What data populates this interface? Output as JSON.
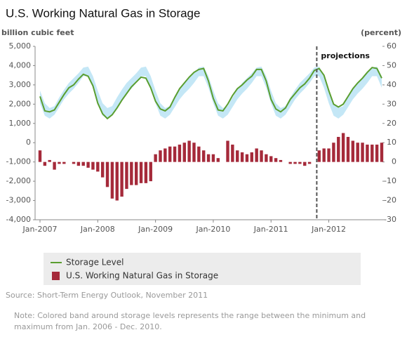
{
  "chart_data": {
    "type": "combo",
    "title": "U.S. Working Natural Gas in Storage",
    "y_label": "billion cubic feet",
    "y2_label": "(percent)",
    "annotation": "projections",
    "source": "Source: Short-Term Energy Outlook, November 2011",
    "note": [
      "Note: Colored band around storage levels represents the range between the minimum and",
      "maximum from Jan. 2006 - Dec. 2010."
    ],
    "categories": [
      "Jan-2007",
      null,
      null,
      null,
      null,
      null,
      null,
      null,
      null,
      null,
      null,
      null,
      "Jan-2008",
      null,
      null,
      null,
      null,
      null,
      null,
      null,
      null,
      null,
      null,
      null,
      "Jan-2009",
      null,
      null,
      null,
      null,
      null,
      null,
      null,
      null,
      null,
      null,
      null,
      "Jan-2010",
      null,
      null,
      null,
      null,
      null,
      null,
      null,
      null,
      null,
      null,
      null,
      "Jan-2011",
      null,
      null,
      null,
      null,
      null,
      null,
      null,
      null,
      null,
      null,
      null,
      "Jan-2012",
      null,
      null,
      null,
      null,
      null,
      null,
      null,
      null,
      null,
      null,
      null
    ],
    "ylim": [
      -4000,
      5000
    ],
    "yticks": [
      {
        "value": -4000,
        "label": "-4,000"
      },
      {
        "value": -3000,
        "label": "-3,000"
      },
      {
        "value": -2000,
        "label": "-2,000"
      },
      {
        "value": -1000,
        "label": "-1,000"
      },
      0,
      {
        "value": 1000,
        "label": "1,000"
      },
      {
        "value": 2000,
        "label": "2,000"
      },
      {
        "value": 3000,
        "label": "3,000"
      },
      {
        "value": 4000,
        "label": "4,000"
      },
      {
        "value": 5000,
        "label": "5,000"
      }
    ],
    "y2lim": [
      -30,
      60
    ],
    "y2ticks": [
      -30,
      -20,
      -10,
      0,
      10,
      20,
      30,
      40,
      50,
      60
    ],
    "band": {
      "color": "#c4e7f6",
      "low": [
        2050,
        1400,
        1250,
        1450,
        1850,
        2250,
        2550,
        2800,
        3100,
        3450,
        3450,
        2850,
        2050,
        1400,
        1250,
        1450,
        1850,
        2250,
        2550,
        2800,
        3100,
        3450,
        3450,
        2850,
        2050,
        1400,
        1250,
        1450,
        1850,
        2250,
        2550,
        2800,
        3100,
        3450,
        3450,
        2850,
        2050,
        1400,
        1250,
        1450,
        1850,
        2250,
        2550,
        2800,
        3100,
        3450,
        3450,
        2850,
        2050,
        1400,
        1250,
        1450,
        1850,
        2250,
        2550,
        2800,
        3100,
        3450,
        3450,
        2850,
        2050,
        1400,
        1250,
        1450,
        1850,
        2250,
        2550,
        2800,
        3100,
        3450,
        3450,
        2850
      ],
      "high": [
        2700,
        2050,
        1800,
        1900,
        2350,
        2750,
        3100,
        3350,
        3600,
        3900,
        3950,
        3450,
        2700,
        2050,
        1800,
        1900,
        2350,
        2750,
        3100,
        3350,
        3600,
        3900,
        3950,
        3450,
        2700,
        2050,
        1800,
        1900,
        2350,
        2750,
        3100,
        3350,
        3600,
        3900,
        3950,
        3450,
        2700,
        2050,
        1800,
        1900,
        2350,
        2750,
        3100,
        3350,
        3600,
        3900,
        3950,
        3450,
        2700,
        2050,
        1800,
        1900,
        2350,
        2750,
        3100,
        3350,
        3600,
        3900,
        3950,
        3450,
        2700,
        2050,
        1800,
        1900,
        2350,
        2750,
        3100,
        3350,
        3600,
        3900,
        3950,
        3450
      ]
    },
    "series": [
      {
        "name": "Storage Level",
        "color": "#5a9e2f",
        "kind": "line",
        "values": [
          2400,
          1650,
          1600,
          1700,
          2100,
          2500,
          2850,
          3000,
          3300,
          3550,
          3450,
          2950,
          2050,
          1500,
          1250,
          1450,
          1800,
          2200,
          2550,
          2900,
          3150,
          3400,
          3350,
          2850,
          2150,
          1750,
          1650,
          1850,
          2350,
          2800,
          3100,
          3400,
          3650,
          3800,
          3850,
          3200,
          2300,
          1700,
          1650,
          2000,
          2450,
          2800,
          3000,
          3250,
          3450,
          3800,
          3800,
          3200,
          2250,
          1750,
          1600,
          1800,
          2250,
          2550,
          2850,
          3050,
          3350,
          3750,
          3850,
          3500,
          2700,
          2000,
          1850,
          2000,
          2400,
          2800,
          3100,
          3350,
          3650,
          3900,
          3850,
          3350
        ]
      },
      {
        "name": "U.S. Working Natural Gas in Storage",
        "color": "#a52a3a",
        "kind": "bar",
        "axis": "y2",
        "values": [
          6,
          -2,
          1,
          -4,
          -1,
          -1,
          0,
          -1,
          -2,
          -2,
          -3,
          -4,
          -5,
          -8,
          -13,
          -19,
          -20,
          -18,
          -14,
          -12,
          -12,
          -11,
          -11,
          -10,
          4,
          6,
          7,
          8,
          8,
          9,
          10,
          11,
          10,
          8,
          6,
          4,
          4,
          2,
          0,
          11,
          9,
          6,
          5,
          4,
          5,
          7,
          6,
          4,
          3,
          2,
          1,
          0,
          -1,
          -1,
          -1,
          -2,
          -1,
          0,
          6,
          7,
          7,
          10,
          13,
          15,
          13,
          11,
          10,
          10,
          9,
          9,
          9,
          10
        ]
      }
    ]
  }
}
